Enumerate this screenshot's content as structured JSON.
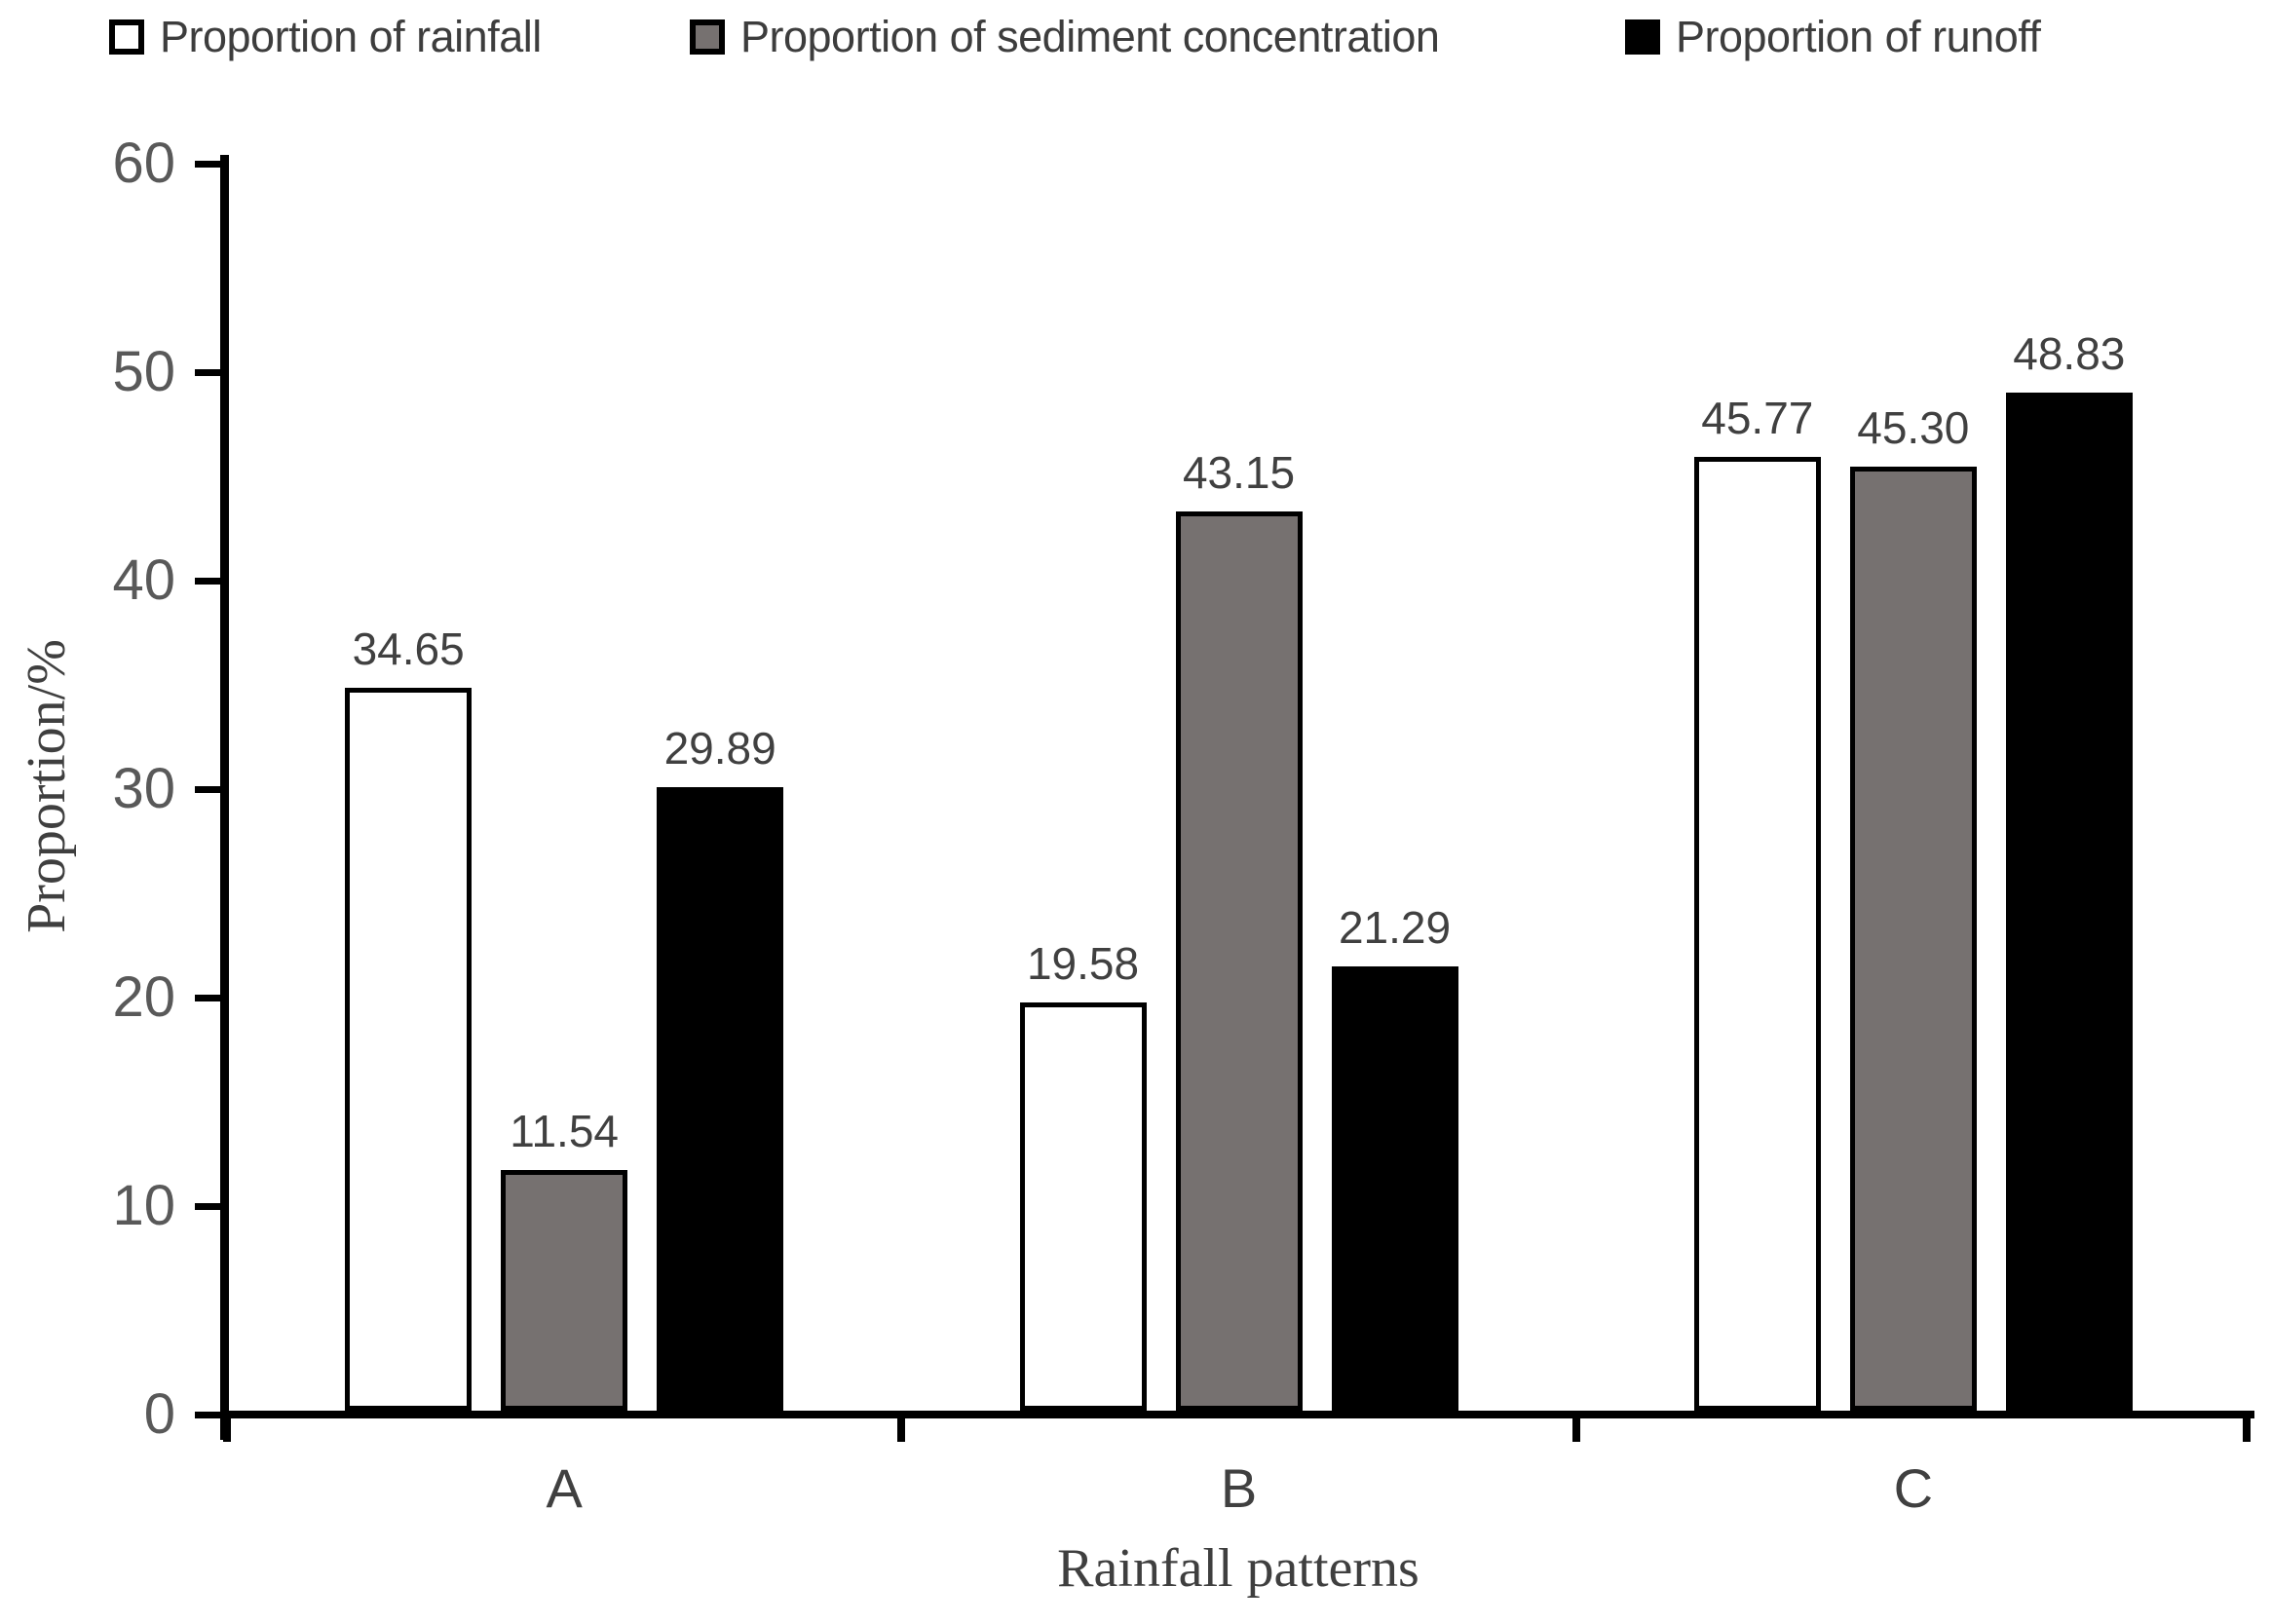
{
  "chart_data": {
    "type": "bar",
    "title": "",
    "categories": [
      "A",
      "B",
      "C"
    ],
    "series": [
      {
        "name": "Proportion of rainfall",
        "color": "#ffffff",
        "values": [
          34.65,
          19.58,
          45.77
        ]
      },
      {
        "name": "Proportion of sediment concentration",
        "color": "#767170",
        "values": [
          11.54,
          43.15,
          45.3
        ]
      },
      {
        "name": "Proportion of runoff",
        "color": "#000000",
        "values": [
          29.89,
          21.29,
          48.83
        ]
      }
    ],
    "xlabel": "Rainfall patterns",
    "ylabel": "Proportion/%",
    "ylim": [
      0,
      60
    ],
    "y_ticks": [
      0,
      10,
      20,
      30,
      40,
      50,
      60
    ],
    "grid": false,
    "legend_position": "top",
    "value_labels": true,
    "value_label_decimals": 2,
    "bar_border_color": "#000000",
    "axis_color": "#000000",
    "text_colors": {
      "tick_label": "#595959",
      "value_label": "#404040",
      "category_label": "#404040",
      "legend_label": "#3d3d3d",
      "axis_title": "#3f3f3f"
    }
  }
}
